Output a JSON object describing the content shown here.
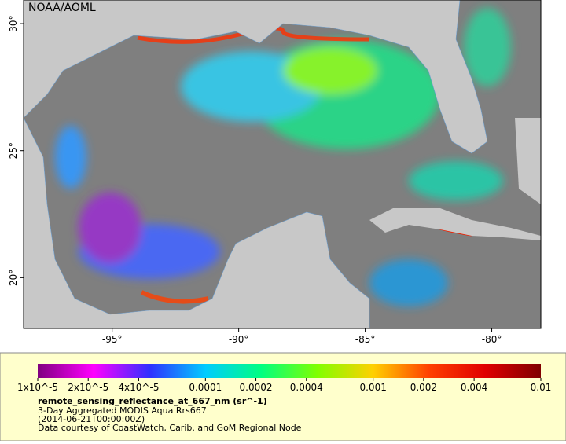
{
  "map": {
    "credit": "NOAA/AOML",
    "lonlim": [
      -98.5,
      -78.06
    ],
    "latlim": [
      18.0,
      30.93
    ],
    "lonticks": [
      {
        "value": -95,
        "label": "-95°"
      },
      {
        "value": -90,
        "label": "-90°"
      },
      {
        "value": -85,
        "label": "-85°"
      },
      {
        "value": -80,
        "label": "-80°"
      }
    ],
    "latticks": [
      {
        "value": 20,
        "label": "20°"
      },
      {
        "value": 25,
        "label": "25°"
      },
      {
        "value": 30,
        "label": "30°"
      }
    ]
  },
  "colorbar": {
    "range": [
      1e-05,
      0.01
    ],
    "log": true,
    "colors": [
      "#800080",
      "#ff00ff",
      "#3030ff",
      "#00ccff",
      "#00ff80",
      "#80ff00",
      "#ffd000",
      "#ff4000",
      "#e00000",
      "#800000"
    ],
    "ticks": [
      {
        "value": 1e-05,
        "label": "1x10^-5"
      },
      {
        "value": 2e-05,
        "label": "2x10^-5"
      },
      {
        "value": 4e-05,
        "label": "4x10^-5"
      },
      0.0001,
      0.0002,
      0.0004,
      0.001,
      0.002,
      0.004,
      0.01
    ]
  },
  "legend": {
    "variable": "remote_sensing_reflectance_at_667_nm (sr^-1)",
    "description": "3-Day Aggregated MODIS Aqua Rrs667",
    "time": "(2014-06-21T00:00:00Z)",
    "source": "Data courtesy of CoastWatch, Carib. and GoM Regional Node"
  }
}
